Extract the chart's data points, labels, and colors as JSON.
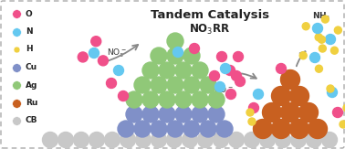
{
  "title": "Tandem Catalysis",
  "subtitle": "NO$_3$RR",
  "background_color": "#ffffff",
  "colors": {
    "O": "#f0508a",
    "N": "#64c8f0",
    "H": "#f0d040",
    "Cu": "#8090c8",
    "Ag": "#90c878",
    "Ru": "#c86020",
    "CB": "#c8c8c8"
  },
  "legend_items": [
    "O",
    "N",
    "H",
    "Cu",
    "Ag",
    "Ru",
    "CB"
  ],
  "legend_colors": [
    "#f0508a",
    "#64c8f0",
    "#f0d040",
    "#8090c8",
    "#90c878",
    "#c86020",
    "#c8c8c8"
  ]
}
